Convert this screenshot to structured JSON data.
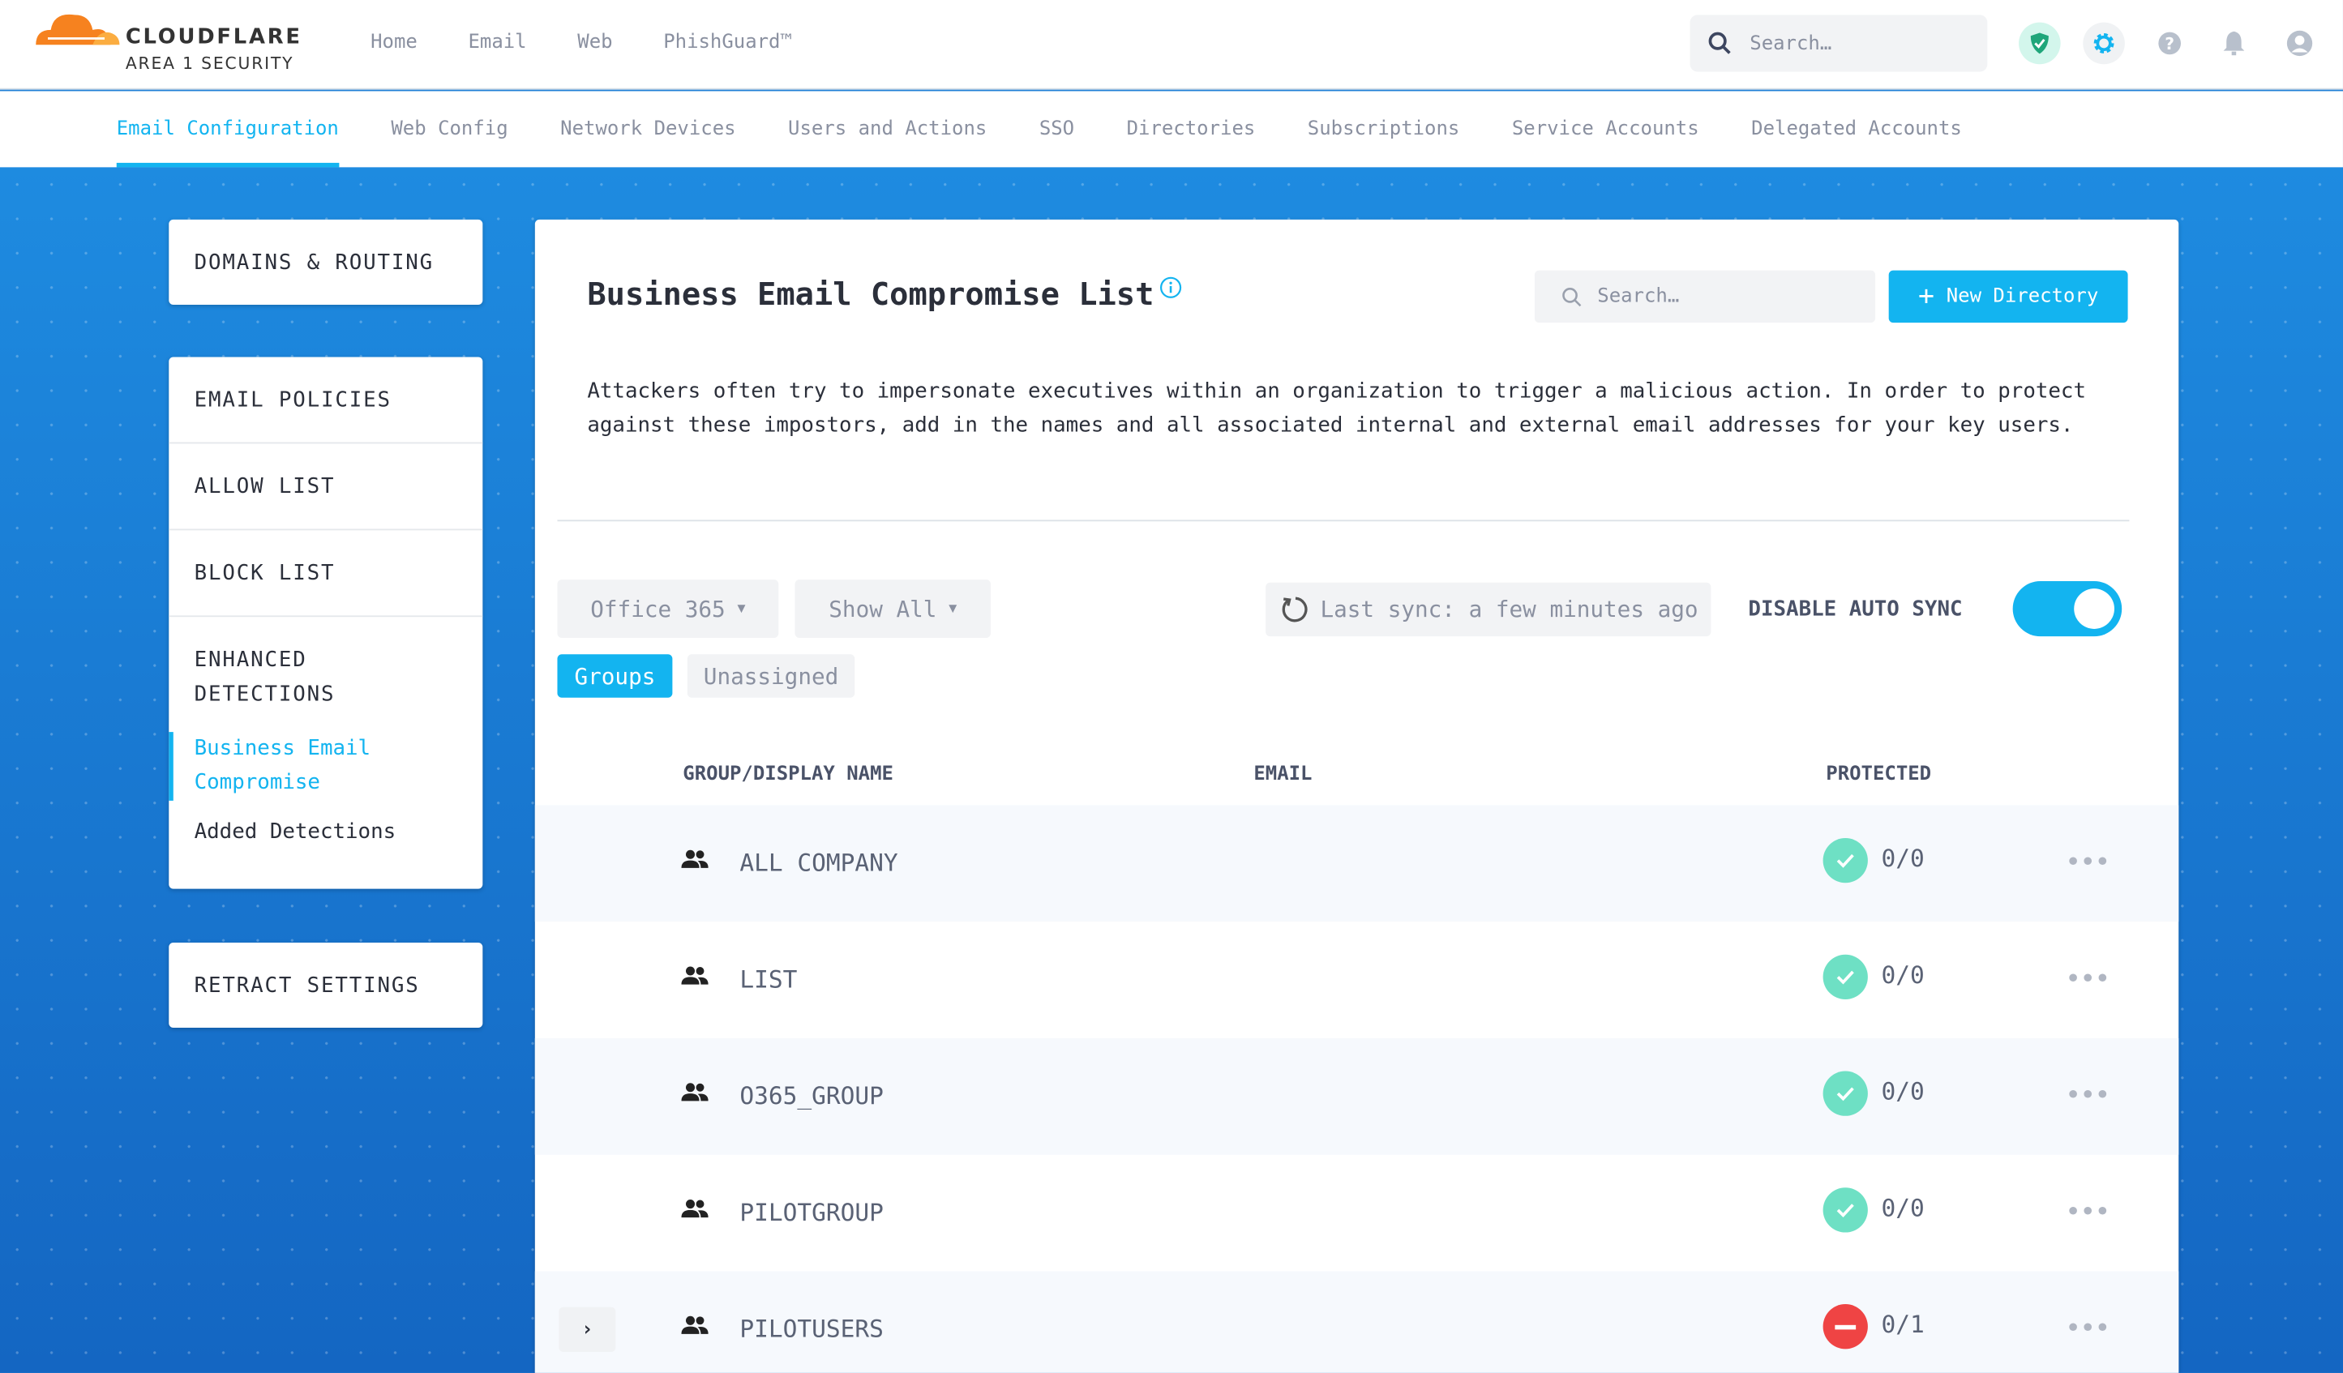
{
  "brand": {
    "name": "CLOUDFLARE",
    "subtitle": "AREA 1 SECURITY"
  },
  "top_nav": [
    "Home",
    "Email",
    "Web",
    "PhishGuard™"
  ],
  "top_search": {
    "placeholder": "Search…"
  },
  "top_icons": [
    "shield-check-icon",
    "gear-icon",
    "help-icon",
    "bell-icon",
    "user-icon"
  ],
  "sub_nav": {
    "items": [
      "Email Configuration",
      "Web Config",
      "Network Devices",
      "Users and Actions",
      "SSO",
      "Directories",
      "Subscriptions",
      "Service Accounts",
      "Delegated Accounts"
    ],
    "active": "Email Configuration"
  },
  "sidebar": {
    "domains": "DOMAINS & ROUTING",
    "policies": "EMAIL POLICIES",
    "allow": "ALLOW LIST",
    "block": "BLOCK LIST",
    "enhanced": "ENHANCED DETECTIONS",
    "bec": "Business Email Compromise",
    "added": "Added Detections",
    "retract": "RETRACT SETTINGS"
  },
  "main": {
    "title": "Business Email Compromise List",
    "search_placeholder": "Search…",
    "new_directory": "New Directory",
    "description": "Attackers often try to impersonate executives within an organization to trigger a malicious action. In order to protect against these impostors, add in the names and all associated internal and external email addresses for your key users.",
    "source_select": "Office 365",
    "filter_select": "Show All",
    "last_sync": "Last sync: a few minutes ago",
    "auto_sync_label": "DISABLE AUTO SYNC",
    "auto_sync_on": true,
    "tabs": [
      "Groups",
      "Unassigned"
    ],
    "active_tab": "Groups",
    "columns": [
      "GROUP/DISPLAY NAME",
      "EMAIL",
      "PROTECTED"
    ],
    "rows": [
      {
        "name": "ALL COMPANY",
        "email": "",
        "protected": "0/0",
        "status": "ok"
      },
      {
        "name": "LIST",
        "email": "",
        "protected": "0/0",
        "status": "ok"
      },
      {
        "name": "O365_GROUP",
        "email": "",
        "protected": "0/0",
        "status": "ok"
      },
      {
        "name": "PILOTGROUP",
        "email": "",
        "protected": "0/0",
        "status": "ok"
      },
      {
        "name": "PILOTUSERS",
        "email": "",
        "protected": "0/1",
        "status": "error",
        "expandable": true
      }
    ]
  },
  "colors": {
    "accent": "#13b4f0",
    "ok": "#6ee0c4",
    "error": "#ef4444"
  }
}
